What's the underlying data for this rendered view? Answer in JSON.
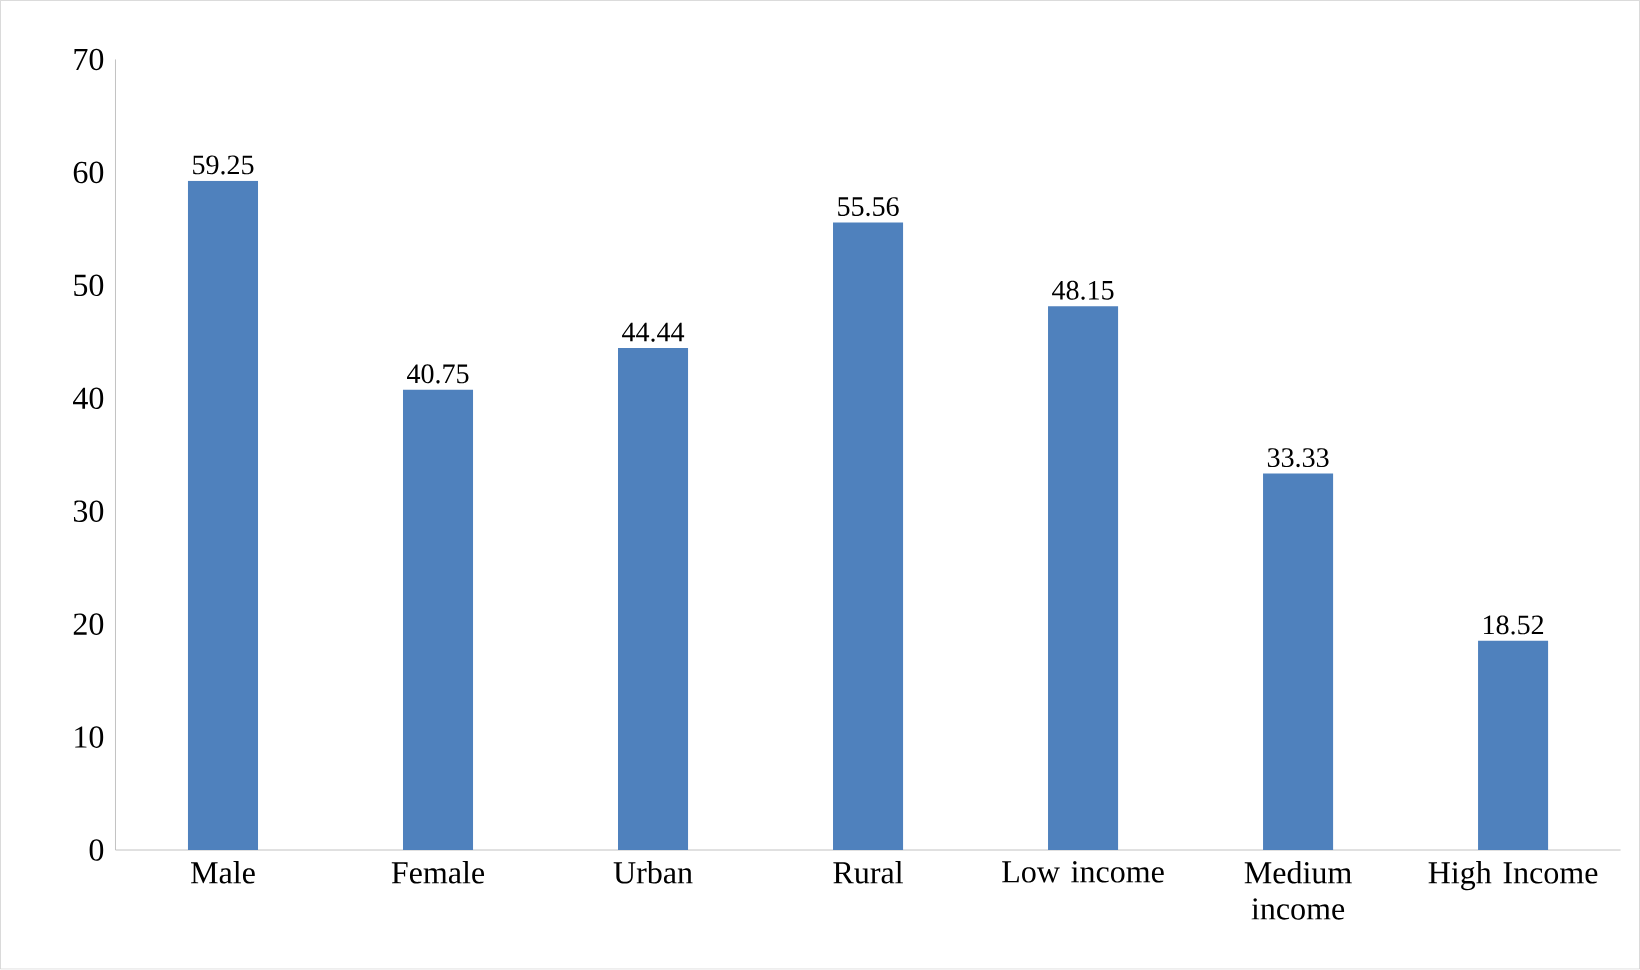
{
  "chart_data": {
    "type": "bar",
    "categories": [
      "Male",
      "Female",
      "Urban",
      "Rural",
      "Low income",
      "Medium income",
      "High Income"
    ],
    "values": [
      59.25,
      40.75,
      44.44,
      55.56,
      48.15,
      33.33,
      18.52
    ],
    "color": "#4f81bd",
    "ylim": [
      0,
      70
    ],
    "yticks": [
      0,
      10,
      20,
      30,
      40,
      50,
      60,
      70
    ],
    "data_labels": true,
    "grid": false
  }
}
